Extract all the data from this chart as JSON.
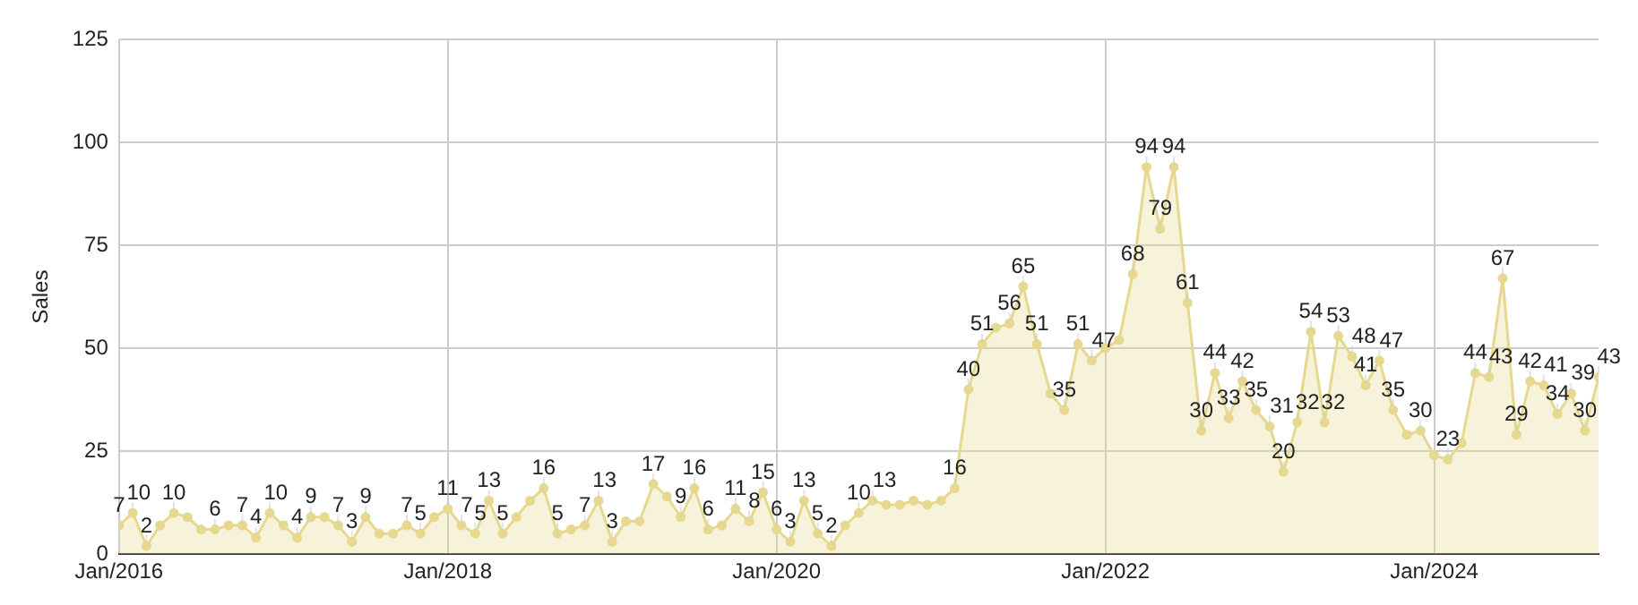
{
  "chart_data": {
    "type": "area",
    "ylabel": "Sales",
    "x": [
      "2016-01",
      "2016-02",
      "2016-03",
      "2016-04",
      "2016-05",
      "2016-06",
      "2016-07",
      "2016-08",
      "2016-09",
      "2016-10",
      "2016-11",
      "2016-12",
      "2017-01",
      "2017-02",
      "2017-03",
      "2017-04",
      "2017-05",
      "2017-06",
      "2017-07",
      "2017-08",
      "2017-09",
      "2017-10",
      "2017-11",
      "2017-12",
      "2018-01",
      "2018-02",
      "2018-03",
      "2018-04",
      "2018-05",
      "2018-06",
      "2018-07",
      "2018-08",
      "2018-09",
      "2018-10",
      "2018-11",
      "2018-12",
      "2019-01",
      "2019-02",
      "2019-03",
      "2019-04",
      "2019-05",
      "2019-06",
      "2019-07",
      "2019-08",
      "2019-09",
      "2019-10",
      "2019-11",
      "2019-12",
      "2020-01",
      "2020-02",
      "2020-03",
      "2020-04",
      "2020-05",
      "2020-06",
      "2020-07",
      "2020-08",
      "2020-09",
      "2020-10",
      "2020-11",
      "2020-12",
      "2021-01",
      "2021-02",
      "2021-03",
      "2021-04",
      "2021-05",
      "2021-06",
      "2021-07",
      "2021-08",
      "2021-09",
      "2021-10",
      "2021-11",
      "2021-12",
      "2022-01",
      "2022-02",
      "2022-03",
      "2022-04",
      "2022-05",
      "2022-06",
      "2022-07",
      "2022-08",
      "2022-09",
      "2022-10",
      "2022-11",
      "2022-12",
      "2023-01",
      "2023-02",
      "2023-03",
      "2023-04",
      "2023-05",
      "2023-06",
      "2023-07",
      "2023-08",
      "2023-09",
      "2023-10",
      "2023-11",
      "2023-12",
      "2024-01",
      "2024-02",
      "2024-03",
      "2024-04",
      "2024-05",
      "2024-06",
      "2024-07",
      "2024-08",
      "2024-09",
      "2024-10",
      "2024-11",
      "2024-12",
      "2025-01"
    ],
    "values": [
      7,
      10,
      2,
      7,
      10,
      9,
      6,
      6,
      7,
      7,
      4,
      10,
      7,
      4,
      9,
      9,
      7,
      3,
      9,
      5,
      5,
      7,
      5,
      9,
      11,
      7,
      5,
      13,
      5,
      9,
      13,
      16,
      5,
      6,
      7,
      13,
      3,
      8,
      8,
      17,
      14,
      9,
      16,
      6,
      7,
      11,
      8,
      15,
      6,
      3,
      13,
      5,
      2,
      7,
      10,
      13,
      12,
      12,
      13,
      12,
      13,
      16,
      40,
      51,
      55,
      56,
      65,
      51,
      39,
      35,
      51,
      47,
      50,
      52,
      68,
      94,
      79,
      94,
      61,
      30,
      44,
      33,
      42,
      35,
      31,
      20,
      32,
      54,
      32,
      53,
      48,
      41,
      47,
      35,
      29,
      30,
      24,
      23,
      27,
      44,
      43,
      67,
      29,
      42,
      41,
      34,
      39,
      30,
      43
    ],
    "value_labels": [
      "7",
      "10",
      "2",
      null,
      "10",
      null,
      null,
      "6",
      null,
      "7",
      "4",
      "10",
      null,
      "4",
      "9",
      null,
      "7",
      "3",
      "9",
      null,
      null,
      "7",
      "5",
      null,
      "11",
      "7",
      "5",
      "13",
      "5",
      null,
      null,
      "16",
      "5",
      null,
      "7",
      "13",
      "3",
      null,
      null,
      "17",
      null,
      "9",
      "16",
      "6",
      null,
      "11",
      "8",
      "15",
      "6",
      "3",
      "13",
      "5",
      "2",
      null,
      "10",
      "13",
      null,
      null,
      null,
      null,
      null,
      "16",
      "40",
      "51",
      null,
      "56",
      "65",
      "51",
      null,
      "35",
      "51",
      "47",
      null,
      null,
      "68",
      "94",
      "79",
      "94",
      "61",
      "30",
      "44",
      "33",
      "42",
      "35",
      "31",
      "20",
      "32",
      "54",
      "32",
      "53",
      "48",
      "41",
      "47",
      "35",
      null,
      "30",
      null,
      "23",
      null,
      "44",
      "43",
      "67",
      "29",
      "42",
      "41",
      "34",
      "39",
      "30",
      "43"
    ],
    "color": "#e6d98f",
    "xlim": [
      "2016-01",
      "2025-01"
    ],
    "xticks": [
      {
        "value": "2016-01",
        "label": "Jan/2016"
      },
      {
        "value": "2018-01",
        "label": "Jan/2018"
      },
      {
        "value": "2020-01",
        "label": "Jan/2020"
      },
      {
        "value": "2022-01",
        "label": "Jan/2022"
      },
      {
        "value": "2024-01",
        "label": "Jan/2024"
      }
    ],
    "ylim": [
      0,
      125
    ],
    "yticks": [
      0,
      25,
      50,
      75,
      100,
      125
    ],
    "grid": true,
    "marker": "circle",
    "legend": false
  }
}
